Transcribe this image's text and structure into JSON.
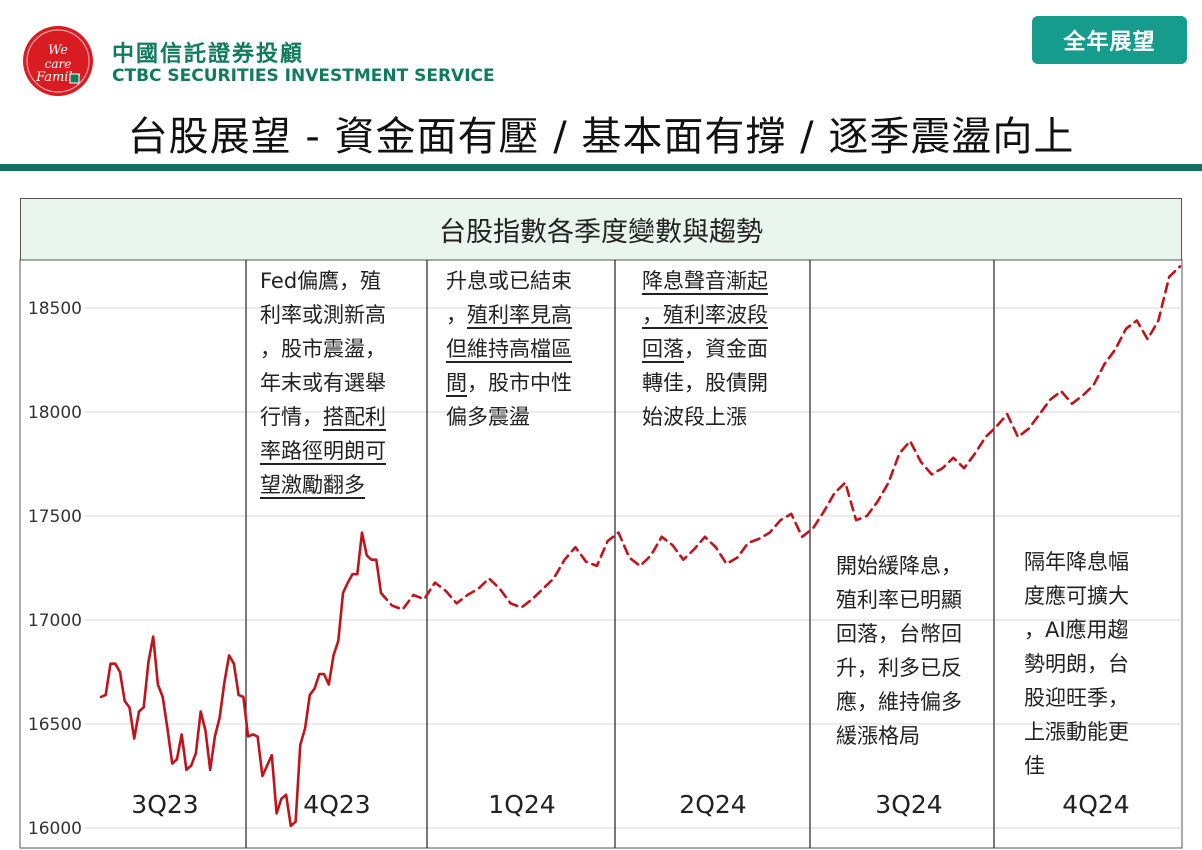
{
  "header": {
    "brand_cn": "中國信託證券投顧",
    "brand_en": "CTBC SECURITIES INVESTMENT SERVICE",
    "badge": "全年展望",
    "main_title": "台股展望 - 資金面有壓 / 基本面有撐 / 逐季震盪向上",
    "logo_text": "We care Family"
  },
  "chart_data": {
    "type": "line",
    "title": "台股指數各季度變數與趨勢",
    "xlabel": "",
    "ylabel": "",
    "ylim": [
      16000,
      18700
    ],
    "yticks": [
      16000,
      16500,
      17000,
      17500,
      18000,
      18500
    ],
    "quarters": [
      "3Q23",
      "4Q23",
      "1Q24",
      "2Q24",
      "3Q24",
      "4Q24"
    ],
    "grid": "horizontal",
    "series": [
      {
        "style": "solid",
        "color": "#c0141b",
        "values": [
          16630,
          16640,
          16790,
          16790,
          16750,
          16610,
          16580,
          16430,
          16560,
          16580,
          16800,
          16920,
          16690,
          16630,
          16480,
          16310,
          16330,
          16450,
          16280,
          16300,
          16360,
          16560,
          16470,
          16280,
          16440,
          16530,
          16700,
          16830,
          16790,
          16640,
          16630,
          16440,
          16450,
          16440,
          16250,
          16300,
          16350,
          16070,
          16140,
          16160,
          16010,
          16030,
          16400,
          16480,
          16640,
          16670,
          16740,
          16740,
          16690,
          16830,
          16900,
          17130,
          17180,
          17220,
          17220,
          17420,
          17310,
          17290,
          17290,
          17130
        ]
      },
      {
        "style": "dashed",
        "color": "#c0141b",
        "values": [
          17070,
          17050,
          17120,
          17100,
          17180,
          17140,
          17080,
          17120,
          17150,
          17200,
          17150,
          17080,
          17060,
          17100,
          17150,
          17200,
          17290,
          17350,
          17280,
          17260,
          17380,
          17420,
          17300,
          17260,
          17310,
          17400,
          17360,
          17290,
          17340,
          17400,
          17350,
          17270,
          17300,
          17370,
          17390,
          17420,
          17480,
          17510,
          17400,
          17440,
          17520,
          17610,
          17660,
          17480,
          17500,
          17570,
          17660,
          17800,
          17860,
          17760,
          17700,
          17730,
          17780,
          17730,
          17800,
          17880,
          17930,
          17990,
          17880,
          17920,
          17990,
          18060,
          18100,
          18040,
          18080,
          18130,
          18230,
          18300,
          18400,
          18440,
          18350,
          18440,
          18650,
          18700
        ]
      }
    ],
    "notes": [
      {
        "quarter": "4Q23",
        "lines": [
          {
            "text": "Fed偏鷹，殖",
            "u": false
          },
          {
            "text": "利率或測新高",
            "u": false
          },
          {
            "text": "，股市震盪，",
            "u": false
          },
          {
            "text": "年末或有選舉",
            "u": false
          },
          {
            "text": "行情，",
            "u": false,
            "tail": "搭配利"
          },
          {
            "text": "率路徑明朗可",
            "u": true
          },
          {
            "text": "望激勵翻多",
            "u": true
          }
        ]
      },
      {
        "quarter": "1Q24",
        "lines": [
          {
            "text": "升息或已結束",
            "u": false
          },
          {
            "text": "，",
            "u": false,
            "tail": "殖利率見高"
          },
          {
            "text": "但維持高檔區",
            "u": true
          },
          {
            "text": "間",
            "u": true,
            "tail2": "，股市中性"
          },
          {
            "text": "偏多震盪",
            "u": false
          }
        ]
      },
      {
        "quarter": "2Q24",
        "lines": [
          {
            "text": "降息聲音漸起",
            "u": true
          },
          {
            "text": "，殖利率波段",
            "u": true
          },
          {
            "text": "回落",
            "u": true,
            "tail2": "，資金面"
          },
          {
            "text": "轉佳，股債開",
            "u": false
          },
          {
            "text": "始波段上漲",
            "u": false
          }
        ]
      },
      {
        "quarter": "3Q24",
        "lines": [
          {
            "text": "開始緩降息，",
            "u": false
          },
          {
            "text": "殖利率已明顯",
            "u": false
          },
          {
            "text": "回落，台幣回",
            "u": false
          },
          {
            "text": "升，利多已反",
            "u": false
          },
          {
            "text": "應，維持偏多",
            "u": false
          },
          {
            "text": "緩漲格局",
            "u": false
          }
        ]
      },
      {
        "quarter": "4Q24",
        "lines": [
          {
            "text": "隔年降息幅",
            "u": false
          },
          {
            "text": "度應可擴大",
            "u": false
          },
          {
            "text": "，AI應用趨",
            "u": false
          },
          {
            "text": "勢明朗，台",
            "u": false
          },
          {
            "text": "股迎旺季，",
            "u": false
          },
          {
            "text": "上漲動能更",
            "u": false
          },
          {
            "text": "佳",
            "u": false
          }
        ]
      }
    ]
  }
}
